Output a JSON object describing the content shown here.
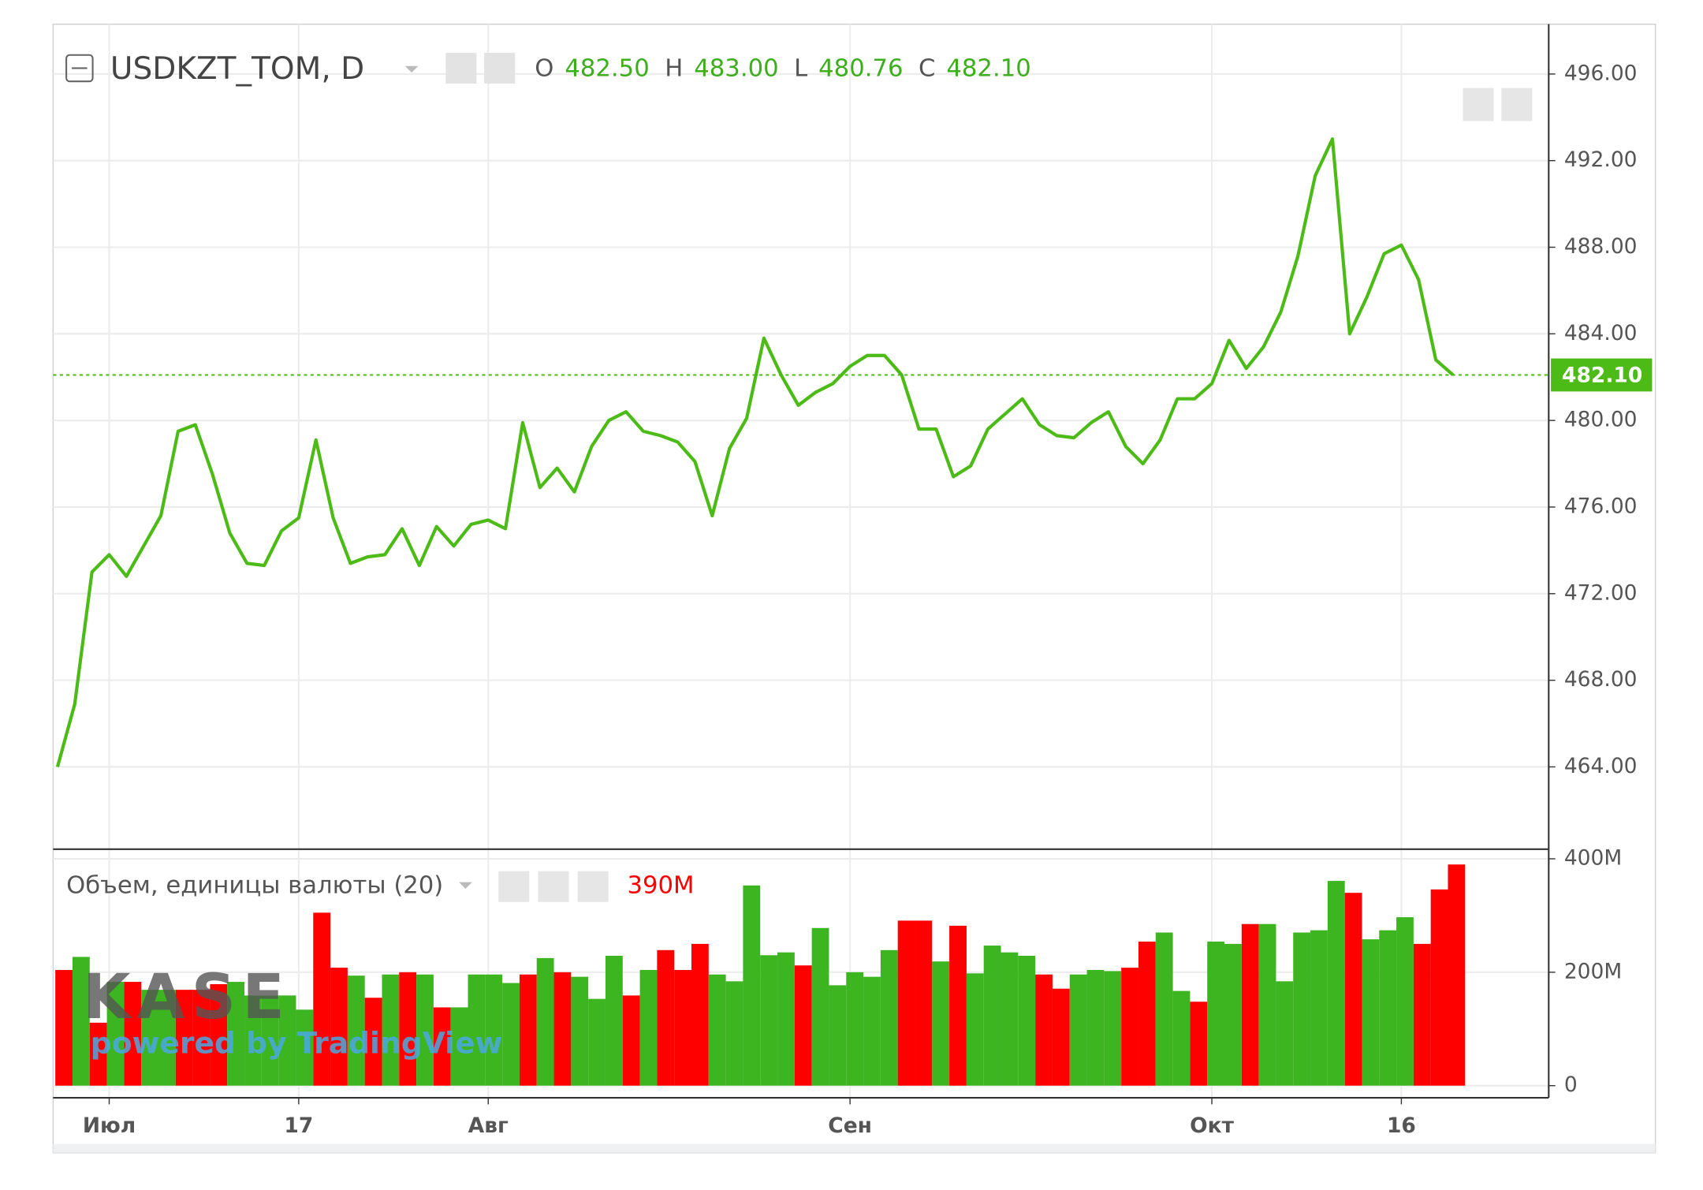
{
  "chart_data": [
    {
      "type": "line",
      "title": "USDKZT_TOM, D",
      "ohlc": {
        "labels": [
          "O",
          "H",
          "L",
          "C"
        ],
        "values": [
          482.5,
          483,
          480.76,
          482.1
        ],
        "value_labels": [
          "482.50",
          "483.00",
          "480.76",
          "482.10"
        ]
      },
      "last_price_label": "482.10",
      "color": "#4cbb17",
      "categories": [
        null,
        null,
        null,
        "Июл",
        null,
        null,
        null,
        null,
        null,
        null,
        null,
        null,
        null,
        null,
        "17",
        null,
        null,
        null,
        null,
        null,
        null,
        null,
        null,
        null,
        null,
        "Авг",
        null,
        null,
        null,
        null,
        null,
        null,
        null,
        null,
        null,
        null,
        null,
        null,
        null,
        null,
        null,
        null,
        null,
        null,
        null,
        null,
        "Сен",
        null,
        null,
        null,
        null,
        null,
        null,
        null,
        null,
        null,
        null,
        null,
        null,
        null,
        null,
        null,
        null,
        null,
        null,
        null,
        null,
        "Окт",
        null,
        null,
        null,
        null,
        null,
        null,
        null,
        null,
        null,
        null,
        "16",
        null,
        null,
        null
      ],
      "values": [
        464.0,
        466.9,
        473.0,
        473.8,
        472.8,
        474.2,
        475.6,
        479.5,
        479.8,
        477.5,
        474.8,
        473.4,
        473.3,
        474.9,
        475.5,
        479.1,
        475.5,
        473.4,
        473.7,
        473.8,
        475.0,
        473.3,
        475.1,
        474.2,
        475.2,
        475.4,
        475.0,
        479.9,
        476.9,
        477.8,
        476.7,
        478.8,
        480.0,
        480.4,
        479.5,
        479.3,
        479.0,
        478.1,
        475.6,
        478.7,
        480.1,
        483.8,
        482.1,
        480.7,
        481.3,
        481.7,
        482.5,
        483.0,
        483.0,
        482.1,
        479.6,
        479.6,
        477.4,
        477.9,
        479.6,
        480.3,
        481.0,
        479.8,
        479.3,
        479.2,
        479.9,
        480.4,
        478.8,
        478.0,
        479.1,
        481.0,
        481.0,
        481.7,
        483.7,
        482.4,
        483.4,
        485.0,
        487.6,
        491.3,
        493.0,
        484.0,
        485.7,
        487.7,
        488.1,
        486.5,
        482.8,
        482.1
      ],
      "ylim": [
        460.2,
        498.3
      ],
      "yticks": [
        {
          "value": 464,
          "label": "464.00"
        },
        {
          "value": 468,
          "label": "468.00"
        },
        {
          "value": 472,
          "label": "472.00"
        },
        {
          "value": 476,
          "label": "476.00"
        },
        {
          "value": 480,
          "label": "480.00"
        },
        {
          "value": 484,
          "label": "484.00"
        },
        {
          "value": 488,
          "label": "488.00"
        },
        {
          "value": 492,
          "label": "492.00"
        },
        {
          "value": 496,
          "label": "496.00"
        }
      ],
      "grid": true
    },
    {
      "type": "bar",
      "title": "Объем, единицы валюты (20)",
      "last_value_label": "390M",
      "values": [
        204,
        227,
        111,
        183,
        183,
        169,
        169,
        169,
        169,
        179,
        183,
        159,
        159,
        159,
        134,
        305,
        208,
        194,
        155,
        196,
        200,
        196,
        138,
        138,
        196,
        196,
        181,
        196,
        225,
        200,
        192,
        153,
        229,
        159,
        204,
        239,
        204,
        250,
        196,
        184,
        353,
        230,
        235,
        212,
        278,
        177,
        200,
        192,
        239,
        291,
        291,
        219,
        282,
        198,
        247,
        235,
        229,
        196,
        171,
        196,
        204,
        202,
        208,
        254,
        270,
        167,
        148,
        254,
        250,
        285,
        285,
        184,
        270,
        274,
        361,
        340,
        258,
        274,
        297,
        250,
        346,
        390
      ],
      "colors": [
        "#ff0000",
        "#3cb521",
        "#ff0000",
        "#3cb521",
        "#ff0000",
        "#3cb521",
        "#3cb521",
        "#ff0000",
        "#ff0000",
        "#ff0000",
        "#3cb521",
        "#3cb521",
        "#3cb521",
        "#3cb521",
        "#3cb521",
        "#ff0000",
        "#ff0000",
        "#3cb521",
        "#ff0000",
        "#3cb521",
        "#ff0000",
        "#3cb521",
        "#ff0000",
        "#3cb521",
        "#3cb521",
        "#3cb521",
        "#3cb521",
        "#ff0000",
        "#3cb521",
        "#ff0000",
        "#3cb521",
        "#3cb521",
        "#3cb521",
        "#ff0000",
        "#3cb521",
        "#ff0000",
        "#ff0000",
        "#ff0000",
        "#3cb521",
        "#3cb521",
        "#3cb521",
        "#3cb521",
        "#3cb521",
        "#ff0000",
        "#3cb521",
        "#3cb521",
        "#3cb521",
        "#3cb521",
        "#3cb521",
        "#ff0000",
        "#ff0000",
        "#3cb521",
        "#ff0000",
        "#3cb521",
        "#3cb521",
        "#3cb521",
        "#3cb521",
        "#ff0000",
        "#ff0000",
        "#3cb521",
        "#3cb521",
        "#3cb521",
        "#ff0000",
        "#ff0000",
        "#3cb521",
        "#3cb521",
        "#ff0000",
        "#3cb521",
        "#3cb521",
        "#ff0000",
        "#3cb521",
        "#3cb521",
        "#3cb521",
        "#3cb521",
        "#3cb521",
        "#ff0000",
        "#3cb521",
        "#3cb521",
        "#3cb521",
        "#ff0000",
        "#ff0000",
        "#ff0000"
      ],
      "ylim": [
        0,
        417
      ],
      "yticks": [
        0,
        {
          "value": 200,
          "label": "200M"
        },
        {
          "value": 400,
          "label": "400M"
        }
      ],
      "watermark": {
        "brand": "KASE",
        "tagline": "powered by TradingView"
      }
    }
  ]
}
